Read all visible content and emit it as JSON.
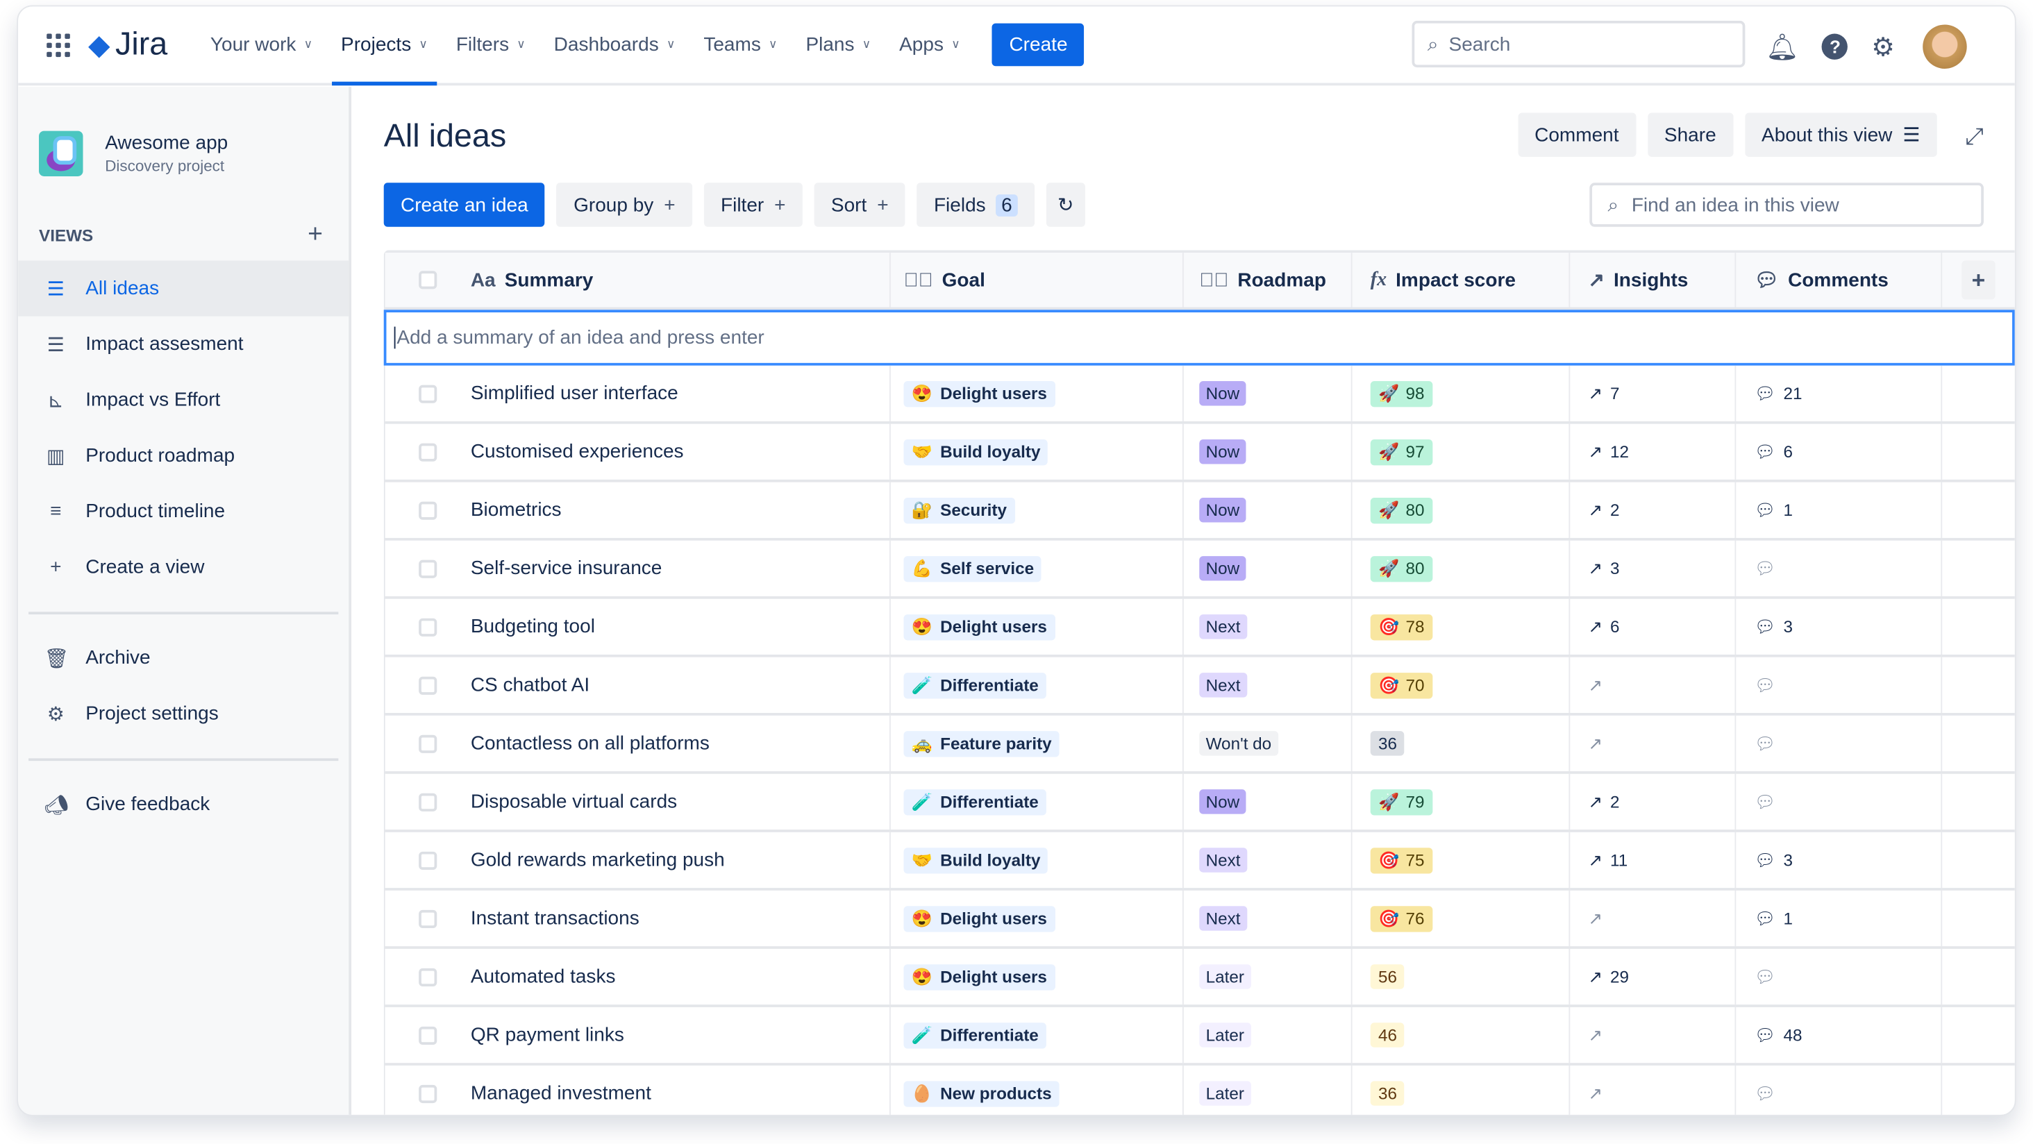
{
  "topnav": {
    "logo": "Jira",
    "items": [
      {
        "label": "Your work"
      },
      {
        "label": "Projects",
        "active": true
      },
      {
        "label": "Filters"
      },
      {
        "label": "Dashboards"
      },
      {
        "label": "Teams"
      },
      {
        "label": "Plans"
      },
      {
        "label": "Apps"
      }
    ],
    "create": "Create",
    "search_placeholder": "Search"
  },
  "sidebar": {
    "project_name": "Awesome app",
    "project_type": "Discovery project",
    "views_label": "VIEWS",
    "items": [
      {
        "label": "All ideas",
        "icon": "list-icon",
        "active": true
      },
      {
        "label": "Impact assesment",
        "icon": "list-icon"
      },
      {
        "label": "Impact vs Effort",
        "icon": "matrix-icon"
      },
      {
        "label": "Product roadmap",
        "icon": "board-icon"
      },
      {
        "label": "Product timeline",
        "icon": "timeline-icon"
      },
      {
        "label": "Create a view",
        "icon": "plus-icon"
      }
    ],
    "items2": [
      {
        "label": "Archive",
        "icon": "trash-icon"
      },
      {
        "label": "Project settings",
        "icon": "gear-icon"
      }
    ],
    "feedback": "Give feedback"
  },
  "main": {
    "title": "All ideas",
    "actions": {
      "comment": "Comment",
      "share": "Share",
      "about": "About this view"
    },
    "toolbar": {
      "create": "Create an idea",
      "group": "Group by",
      "filter": "Filter",
      "sort": "Sort",
      "fields": "Fields",
      "fields_count": "6"
    },
    "find_placeholder": "Find an idea in this view",
    "columns": {
      "summary": "Summary",
      "goal": "Goal",
      "roadmap": "Roadmap",
      "impact": "Impact score",
      "insights": "Insights",
      "comments": "Comments"
    },
    "add_placeholder": "Add a summary of an idea and press enter"
  },
  "colors": {
    "accent": "#0c66e4",
    "now": "#b8acf6",
    "next": "#dfd8fd",
    "later": "#f3f0ff",
    "wontdo": "#f1f2f4",
    "score_high": "#baf3db",
    "score_mid": "#f8e6a0",
    "score_low": "#fff7d6",
    "score_none": "#dcdfe4"
  },
  "rows": [
    {
      "summary": "Simplified user interface",
      "goal": "Delight users",
      "goal_emoji": "😍",
      "roadmap": "Now",
      "score": "98",
      "score_level": "high",
      "insights": "7",
      "comments": "21"
    },
    {
      "summary": "Customised experiences",
      "goal": "Build loyalty",
      "goal_emoji": "🤝",
      "roadmap": "Now",
      "score": "97",
      "score_level": "high",
      "insights": "12",
      "comments": "6"
    },
    {
      "summary": "Biometrics",
      "goal": "Security",
      "goal_emoji": "🔐",
      "roadmap": "Now",
      "score": "80",
      "score_level": "high",
      "insights": "2",
      "comments": "1"
    },
    {
      "summary": "Self-service insurance",
      "goal": "Self service",
      "goal_emoji": "💪",
      "roadmap": "Now",
      "score": "80",
      "score_level": "high",
      "insights": "3",
      "comments": ""
    },
    {
      "summary": "Budgeting tool",
      "goal": "Delight users",
      "goal_emoji": "😍",
      "roadmap": "Next",
      "score": "78",
      "score_level": "mid",
      "insights": "6",
      "comments": "3"
    },
    {
      "summary": "CS chatbot AI",
      "goal": "Differentiate",
      "goal_emoji": "🧪",
      "roadmap": "Next",
      "score": "70",
      "score_level": "mid",
      "insights": "",
      "comments": ""
    },
    {
      "summary": "Contactless on all platforms",
      "goal": "Feature parity",
      "goal_emoji": "🚕",
      "roadmap": "Won't do",
      "score": "36",
      "score_level": "none",
      "insights": "",
      "comments": ""
    },
    {
      "summary": "Disposable virtual cards",
      "goal": "Differentiate",
      "goal_emoji": "🧪",
      "roadmap": "Now",
      "score": "79",
      "score_level": "high",
      "insights": "2",
      "comments": ""
    },
    {
      "summary": "Gold rewards marketing push",
      "goal": "Build loyalty",
      "goal_emoji": "🤝",
      "roadmap": "Next",
      "score": "75",
      "score_level": "mid",
      "insights": "11",
      "comments": "3"
    },
    {
      "summary": "Instant transactions",
      "goal": "Delight users",
      "goal_emoji": "😍",
      "roadmap": "Next",
      "score": "76",
      "score_level": "mid",
      "insights": "",
      "comments": "1"
    },
    {
      "summary": "Automated tasks",
      "goal": "Delight users",
      "goal_emoji": "😍",
      "roadmap": "Later",
      "score": "56",
      "score_level": "low",
      "insights": "29",
      "comments": ""
    },
    {
      "summary": "QR payment links",
      "goal": "Differentiate",
      "goal_emoji": "🧪",
      "roadmap": "Later",
      "score": "46",
      "score_level": "low",
      "insights": "",
      "comments": "48"
    },
    {
      "summary": "Managed investment",
      "goal": "New products",
      "goal_emoji": "🥚",
      "roadmap": "Later",
      "score": "36",
      "score_level": "low",
      "insights": "",
      "comments": ""
    }
  ]
}
